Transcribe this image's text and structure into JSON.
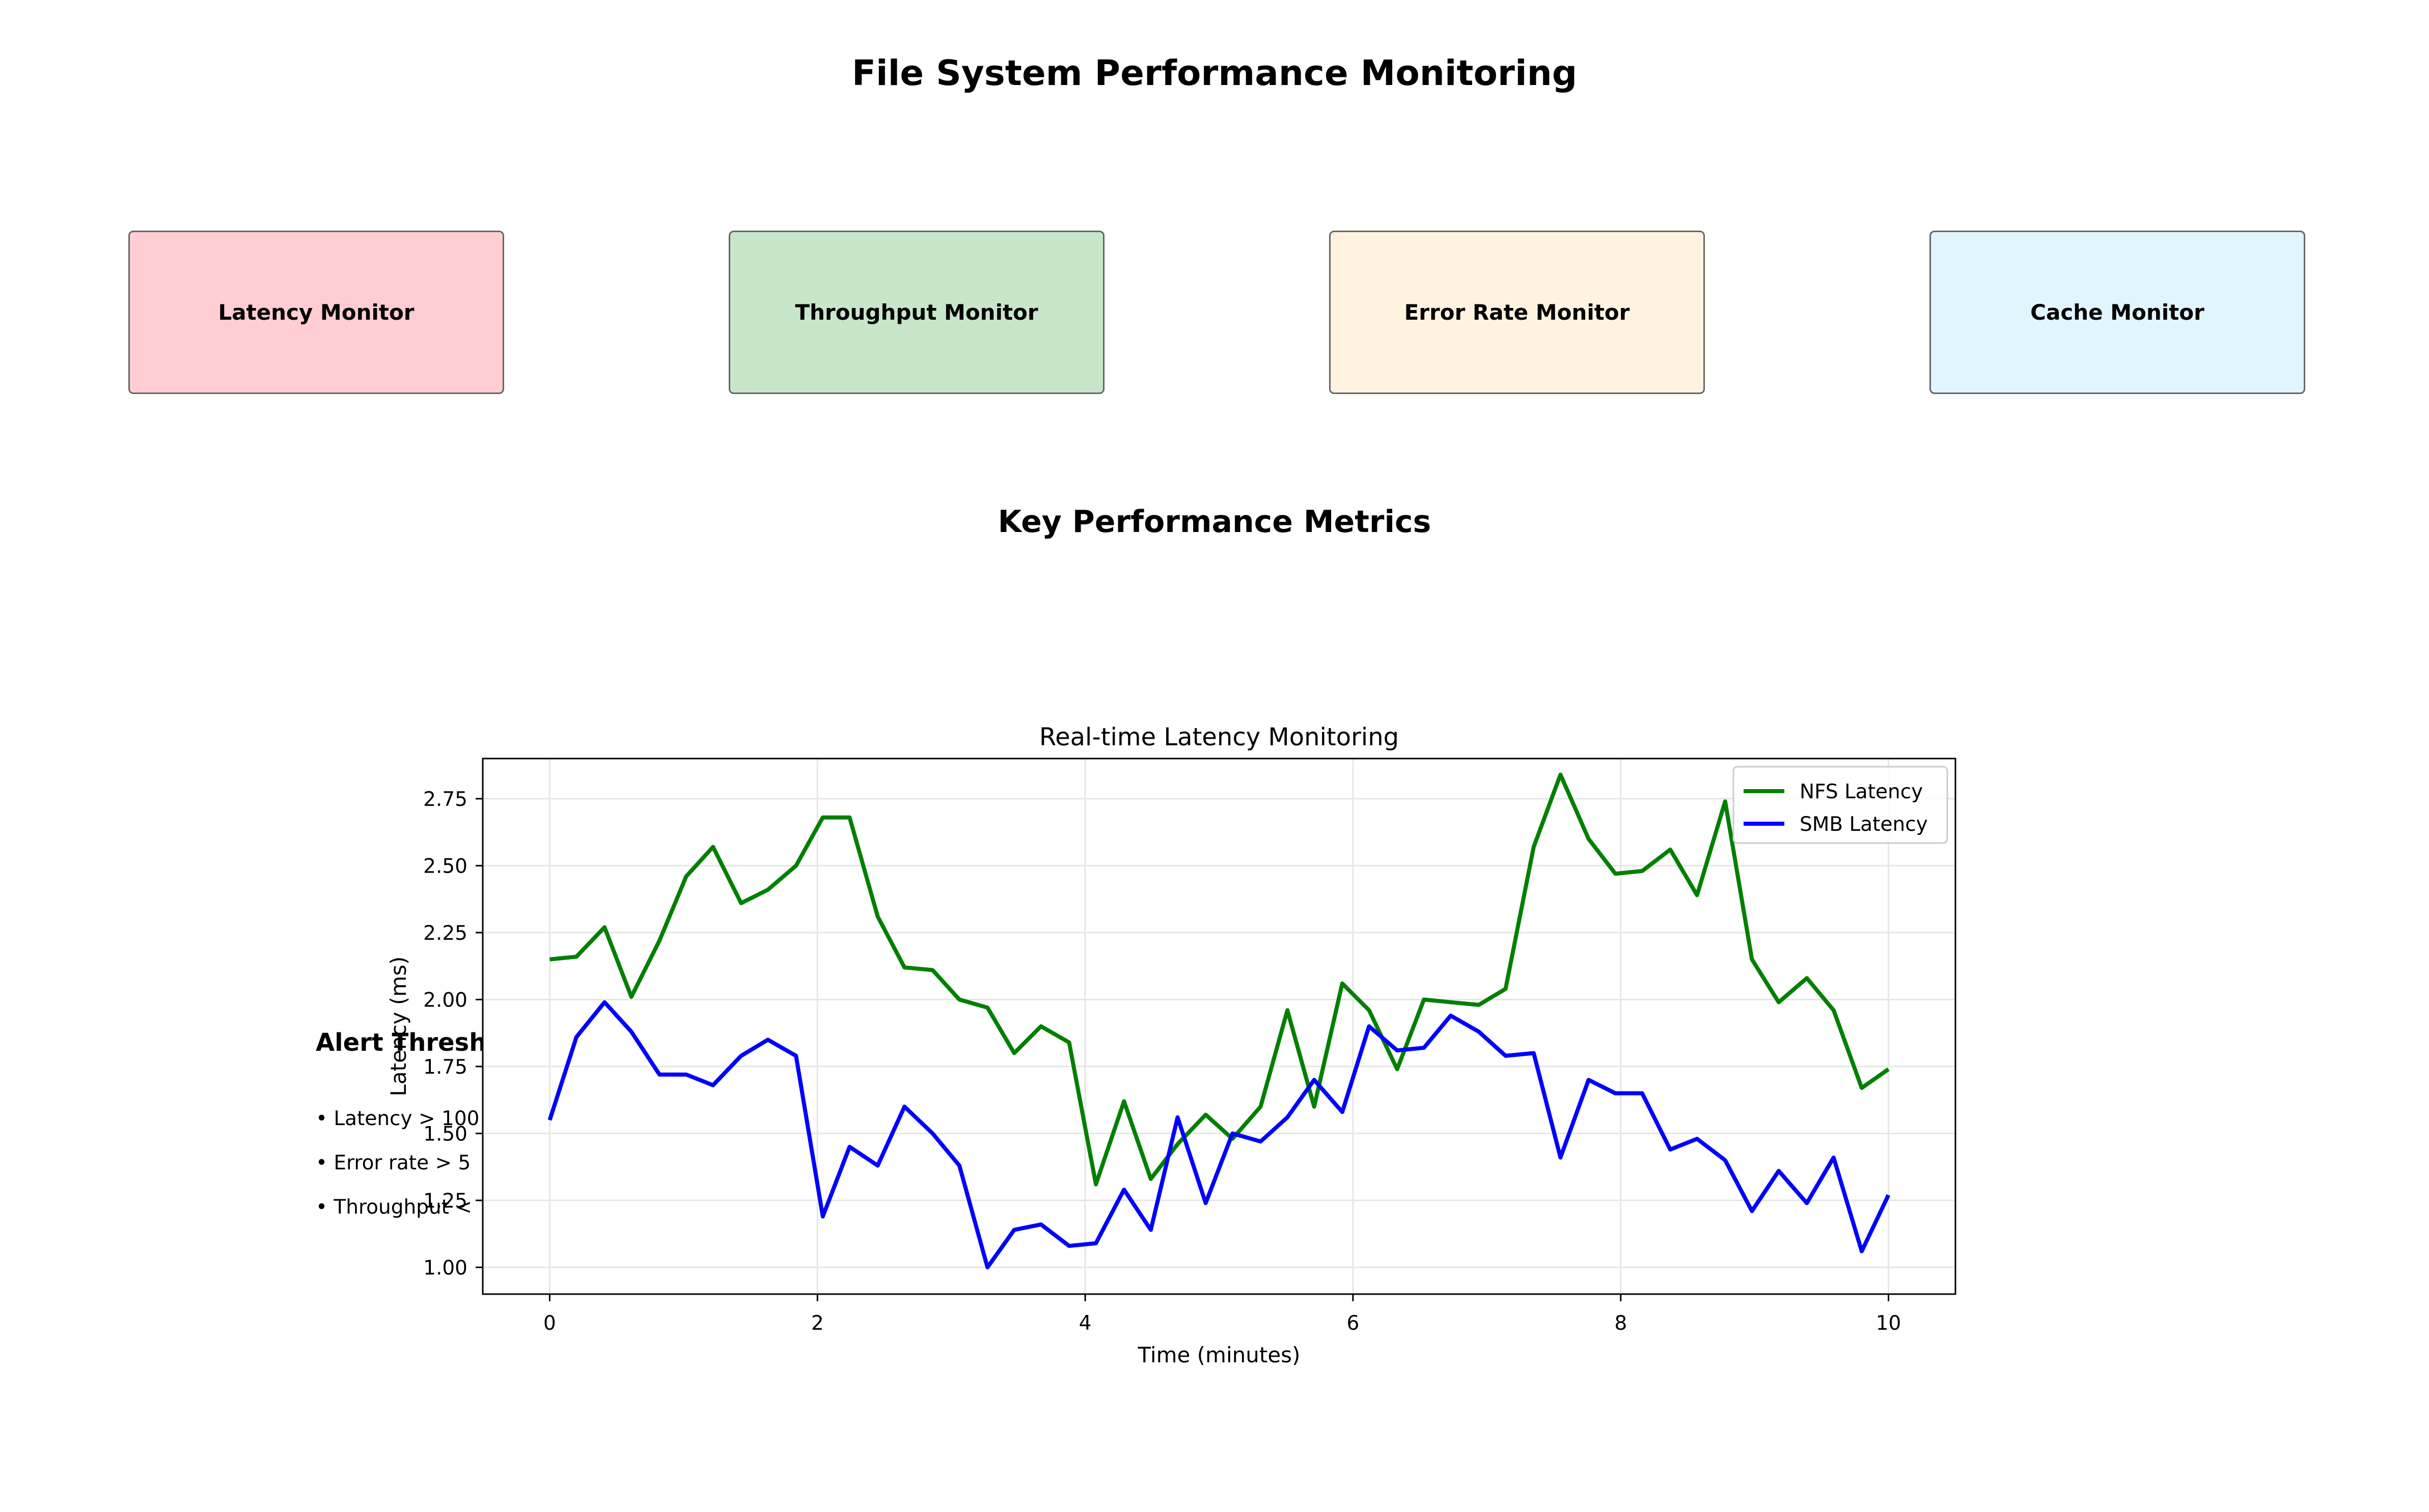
{
  "page": {
    "title": "File System Performance Monitoring",
    "monitors": [
      {
        "label": "Latency Monitor",
        "color": "#ffcdd2"
      },
      {
        "label": "Throughput Monitor",
        "color": "#c8e6c9"
      },
      {
        "label": "Error Rate Monitor",
        "color": "#fff3e0"
      },
      {
        "label": "Cache Monitor",
        "color": "#e1f5fe"
      }
    ],
    "section_title": "Key Performance Metrics",
    "alerts": {
      "title": "Alert Thresh",
      "items": [
        "• Latency > 100",
        "• Error rate > 5",
        "• Throughput <"
      ]
    }
  },
  "chart_data": {
    "type": "line",
    "title": "Real-time Latency Monitoring",
    "xlabel": "Time (minutes)",
    "ylabel": "Latency (ms)",
    "xlim": [
      -0.5,
      10.5
    ],
    "ylim": [
      0.9,
      2.9
    ],
    "xticks": [
      0,
      2,
      4,
      6,
      8,
      10
    ],
    "xtick_labels": [
      "0",
      "2",
      "4",
      "6",
      "8",
      "10"
    ],
    "yticks": [
      1.0,
      1.25,
      1.5,
      1.75,
      2.0,
      2.25,
      2.5,
      2.75
    ],
    "ytick_labels": [
      "1.00",
      "1.25",
      "1.50",
      "1.75",
      "2.00",
      "2.25",
      "2.50",
      "2.75"
    ],
    "grid": true,
    "legend_position": "top-right",
    "x": [
      0,
      0.2,
      0.41,
      0.61,
      0.82,
      1.02,
      1.22,
      1.43,
      1.63,
      1.84,
      2.04,
      2.24,
      2.45,
      2.65,
      2.86,
      3.06,
      3.27,
      3.47,
      3.67,
      3.88,
      4.08,
      4.29,
      4.49,
      4.69,
      4.9,
      5.1,
      5.31,
      5.51,
      5.71,
      5.92,
      6.12,
      6.33,
      6.53,
      6.73,
      6.94,
      7.14,
      7.35,
      7.55,
      7.76,
      7.96,
      8.16,
      8.37,
      8.57,
      8.78,
      8.98,
      9.18,
      9.39,
      9.59,
      9.8,
      10
    ],
    "series": [
      {
        "name": "NFS Latency",
        "color": "#008000",
        "values": [
          2.15,
          2.16,
          2.27,
          2.01,
          2.22,
          2.46,
          2.57,
          2.36,
          2.41,
          2.5,
          2.68,
          2.68,
          2.31,
          2.12,
          2.11,
          2.0,
          1.97,
          1.8,
          1.9,
          1.84,
          1.31,
          1.62,
          1.33,
          1.46,
          1.57,
          1.48,
          1.6,
          1.96,
          1.6,
          2.06,
          1.96,
          1.74,
          2.0,
          1.99,
          1.98,
          2.04,
          2.57,
          2.84,
          2.6,
          2.47,
          2.48,
          2.56,
          2.39,
          2.74,
          2.15,
          1.99,
          2.08,
          1.96,
          1.67,
          1.74
        ]
      },
      {
        "name": "SMB Latency",
        "color": "#0000ff",
        "values": [
          1.55,
          1.86,
          1.99,
          1.88,
          1.72,
          1.72,
          1.68,
          1.79,
          1.85,
          1.79,
          1.19,
          1.45,
          1.38,
          1.6,
          1.5,
          1.38,
          1.0,
          1.14,
          1.16,
          1.08,
          1.09,
          1.29,
          1.14,
          1.56,
          1.24,
          1.5,
          1.47,
          1.56,
          1.7,
          1.58,
          1.9,
          1.81,
          1.82,
          1.94,
          1.88,
          1.79,
          1.8,
          1.41,
          1.7,
          1.65,
          1.65,
          1.44,
          1.48,
          1.4,
          1.21,
          1.36,
          1.24,
          1.41,
          1.06,
          1.27
        ]
      }
    ]
  }
}
